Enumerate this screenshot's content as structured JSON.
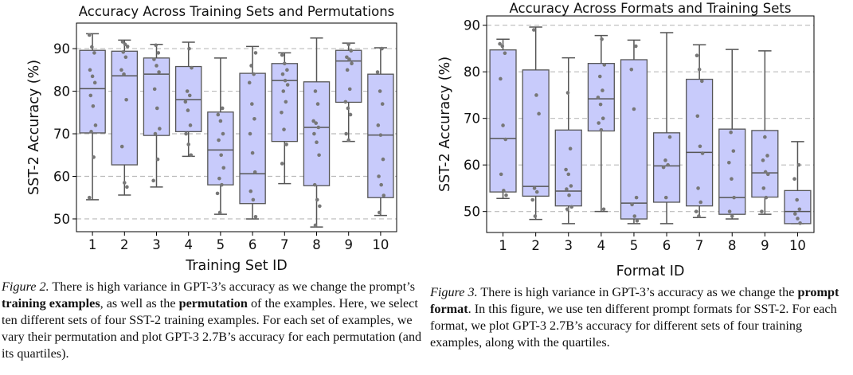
{
  "figures": [
    {
      "chart_data": {
        "type": "box",
        "title": "Accuracy Across Training Sets and Permutations",
        "xlabel": "Training Set ID",
        "ylabel": "SST-2 Accuracy (%)",
        "ylim": [
          47,
          96
        ],
        "yticks": [
          50,
          60,
          70,
          80,
          90
        ],
        "grid": "horizontal dashed",
        "categories": [
          "1",
          "2",
          "3",
          "4",
          "5",
          "6",
          "7",
          "8",
          "9",
          "10"
        ],
        "boxes": [
          {
            "min": 54.5,
            "q1": 70.2,
            "median": 80.6,
            "q3": 89.6,
            "max": 93.5,
            "points": [
              93.2,
              90.4,
              89.0,
              85.0,
              83.5,
              82.0,
              79.0,
              76.5,
              72.0,
              70.5,
              64.5,
              55.0
            ]
          },
          {
            "min": 55.6,
            "q1": 62.7,
            "median": 83.6,
            "q3": 89.4,
            "max": 92.0,
            "points": [
              91.6,
              91.0,
              90.5,
              89.2,
              88.0,
              85.0,
              84.0,
              78.0,
              67.0,
              58.5,
              57.5
            ]
          },
          {
            "min": 57.5,
            "q1": 69.6,
            "median": 84.0,
            "q3": 87.8,
            "max": 91.0,
            "points": [
              90.8,
              89.0,
              87.5,
              86.0,
              84.5,
              80.5,
              76.0,
              71.2,
              70.0,
              64.0,
              59.0
            ]
          },
          {
            "min": 64.7,
            "q1": 70.5,
            "median": 78.0,
            "q3": 85.8,
            "max": 91.5,
            "points": [
              90.0,
              85.5,
              80.0,
              79.0,
              77.5,
              75.5,
              72.0,
              70.0,
              67.5,
              65.0
            ]
          },
          {
            "min": 51.1,
            "q1": 58.0,
            "median": 66.2,
            "q3": 75.1,
            "max": 87.8,
            "points": [
              76.0,
              74.5,
              73.0,
              70.0,
              68.5,
              65.0,
              62.0,
              59.5,
              58.0,
              56.0,
              51.5
            ]
          },
          {
            "min": 50.0,
            "q1": 53.6,
            "median": 60.6,
            "q3": 84.2,
            "max": 90.5,
            "points": [
              89.0,
              86.0,
              84.0,
              82.0,
              77.0,
              73.5,
              70.0,
              65.5,
              61.0,
              56.5,
              54.5,
              50.5
            ]
          },
          {
            "min": 58.3,
            "q1": 68.2,
            "median": 82.5,
            "q3": 86.5,
            "max": 89.0,
            "points": [
              88.5,
              86.5,
              85.0,
              84.0,
              82.5,
              81.5,
              80.0,
              77.5,
              75.0,
              71.0,
              67.5,
              63.0
            ]
          },
          {
            "min": 48.1,
            "q1": 57.8,
            "median": 71.5,
            "q3": 82.2,
            "max": 92.5,
            "points": [
              80.0,
              77.0,
              73.0,
              72.5,
              71.5,
              70.0,
              68.0,
              65.0,
              58.0,
              54.5,
              53.0,
              48.5
            ]
          },
          {
            "min": 68.2,
            "q1": 77.4,
            "median": 87.1,
            "q3": 89.6,
            "max": 91.3,
            "points": [
              91.0,
              89.5,
              88.0,
              87.5,
              86.5,
              85.0,
              80.5,
              77.5,
              76.0,
              74.5,
              70.0,
              68.5
            ]
          },
          {
            "min": 50.8,
            "q1": 55.0,
            "median": 69.7,
            "q3": 84.0,
            "max": 90.2,
            "points": [
              90.0,
              84.5,
              80.0,
              77.0,
              72.0,
              69.7,
              64.0,
              60.0,
              58.0,
              55.5,
              51.5
            ]
          }
        ]
      },
      "caption": {
        "label": "Figure 2.",
        "parts": [
          {
            "text": " There is high variance in GPT-3’s accuracy as we change the prompt’s ",
            "bold": false
          },
          {
            "text": "training examples",
            "bold": true
          },
          {
            "text": ", as well as the ",
            "bold": false
          },
          {
            "text": "permutation",
            "bold": true
          },
          {
            "text": " of the examples. Here, we select ten different sets of four SST-2 training examples. For each set of examples, we vary their permutation and plot GPT-3 2.7B’s accuracy for each permutation (and its quartiles).",
            "bold": false
          }
        ]
      }
    },
    {
      "chart_data": {
        "type": "box",
        "title": "Accuracy Across Formats and Training Sets",
        "xlabel": "Format ID",
        "ylabel": "SST-2 Accuracy (%)",
        "ylim": [
          45.5,
          92
        ],
        "yticks": [
          50,
          60,
          70,
          80,
          90
        ],
        "grid": "horizontal dashed",
        "categories": [
          "1",
          "2",
          "3",
          "4",
          "5",
          "6",
          "7",
          "8",
          "9",
          "10"
        ],
        "boxes": [
          {
            "min": 52.8,
            "q1": 54.2,
            "median": 65.7,
            "q3": 84.7,
            "max": 87.0,
            "points": [
              86.0,
              85.5,
              84.0,
              78.5,
              68.5,
              65.5,
              58.0,
              54.5,
              53.5
            ]
          },
          {
            "min": 48.3,
            "q1": 53.3,
            "median": 55.4,
            "q3": 80.4,
            "max": 89.6,
            "points": [
              89.0,
              75.0,
              71.0,
              55.0,
              54.2,
              52.5,
              49.0
            ]
          },
          {
            "min": 47.4,
            "q1": 51.2,
            "median": 54.4,
            "q3": 67.5,
            "max": 83.0,
            "points": [
              75.5,
              63.5,
              59.0,
              58.0,
              55.5,
              54.8,
              53.5,
              51.0,
              50.5
            ]
          },
          {
            "min": 50.0,
            "q1": 67.3,
            "median": 74.2,
            "q3": 81.8,
            "max": 87.8,
            "points": [
              87.0,
              81.5,
              79.0,
              76.0,
              74.5,
              73.0,
              70.0,
              69.0,
              67.5,
              50.5
            ]
          },
          {
            "min": 47.4,
            "q1": 48.4,
            "median": 51.8,
            "q3": 82.6,
            "max": 86.8,
            "points": [
              85.5,
              80.5,
              72.0,
              53.0,
              51.5,
              49.0,
              48.0
            ]
          },
          {
            "min": 47.4,
            "q1": 52.0,
            "median": 59.8,
            "q3": 66.9,
            "max": 88.4,
            "points": [
              66.0,
              61.0,
              60.0,
              59.5,
              53.0
            ]
          },
          {
            "min": 48.7,
            "q1": 51.2,
            "median": 62.7,
            "q3": 78.4,
            "max": 85.8,
            "points": [
              83.5,
              80.5,
              78.0,
              70.5,
              64.0,
              62.5,
              55.0,
              52.0,
              50.0,
              49.0
            ]
          },
          {
            "min": 48.4,
            "q1": 49.4,
            "median": 53.0,
            "q3": 67.7,
            "max": 84.8,
            "points": [
              67.0,
              63.0,
              60.5,
              57.0,
              53.0,
              50.0,
              49.0
            ]
          },
          {
            "min": 49.4,
            "q1": 53.1,
            "median": 58.3,
            "q3": 67.4,
            "max": 84.5,
            "points": [
              66.0,
              62.0,
              61.0,
              58.5,
              58.0,
              55.0,
              53.0,
              50.0
            ]
          },
          {
            "min": 47.4,
            "q1": 47.4,
            "median": 50.0,
            "q3": 54.5,
            "max": 65.0,
            "points": [
              60.0,
              57.0,
              52.5,
              50.5,
              49.5,
              48.5,
              47.5
            ]
          }
        ]
      },
      "caption": {
        "label": "Figure 3.",
        "parts": [
          {
            "text": " There is high variance in GPT-3’s accuracy as we change the ",
            "bold": false
          },
          {
            "text": "prompt format",
            "bold": true
          },
          {
            "text": ". In this figure, we use ten different prompt formats for SST-2. For each format, we plot GPT-3 2.7B’s accuracy for different sets of four training examples, along with the quartiles.",
            "bold": false
          }
        ]
      }
    }
  ],
  "colors": {
    "box_fill": "#c8cbfb",
    "box_edge": "#555555",
    "whisker": "#555555",
    "points": "#777777",
    "grid": "#bbbbbb"
  }
}
